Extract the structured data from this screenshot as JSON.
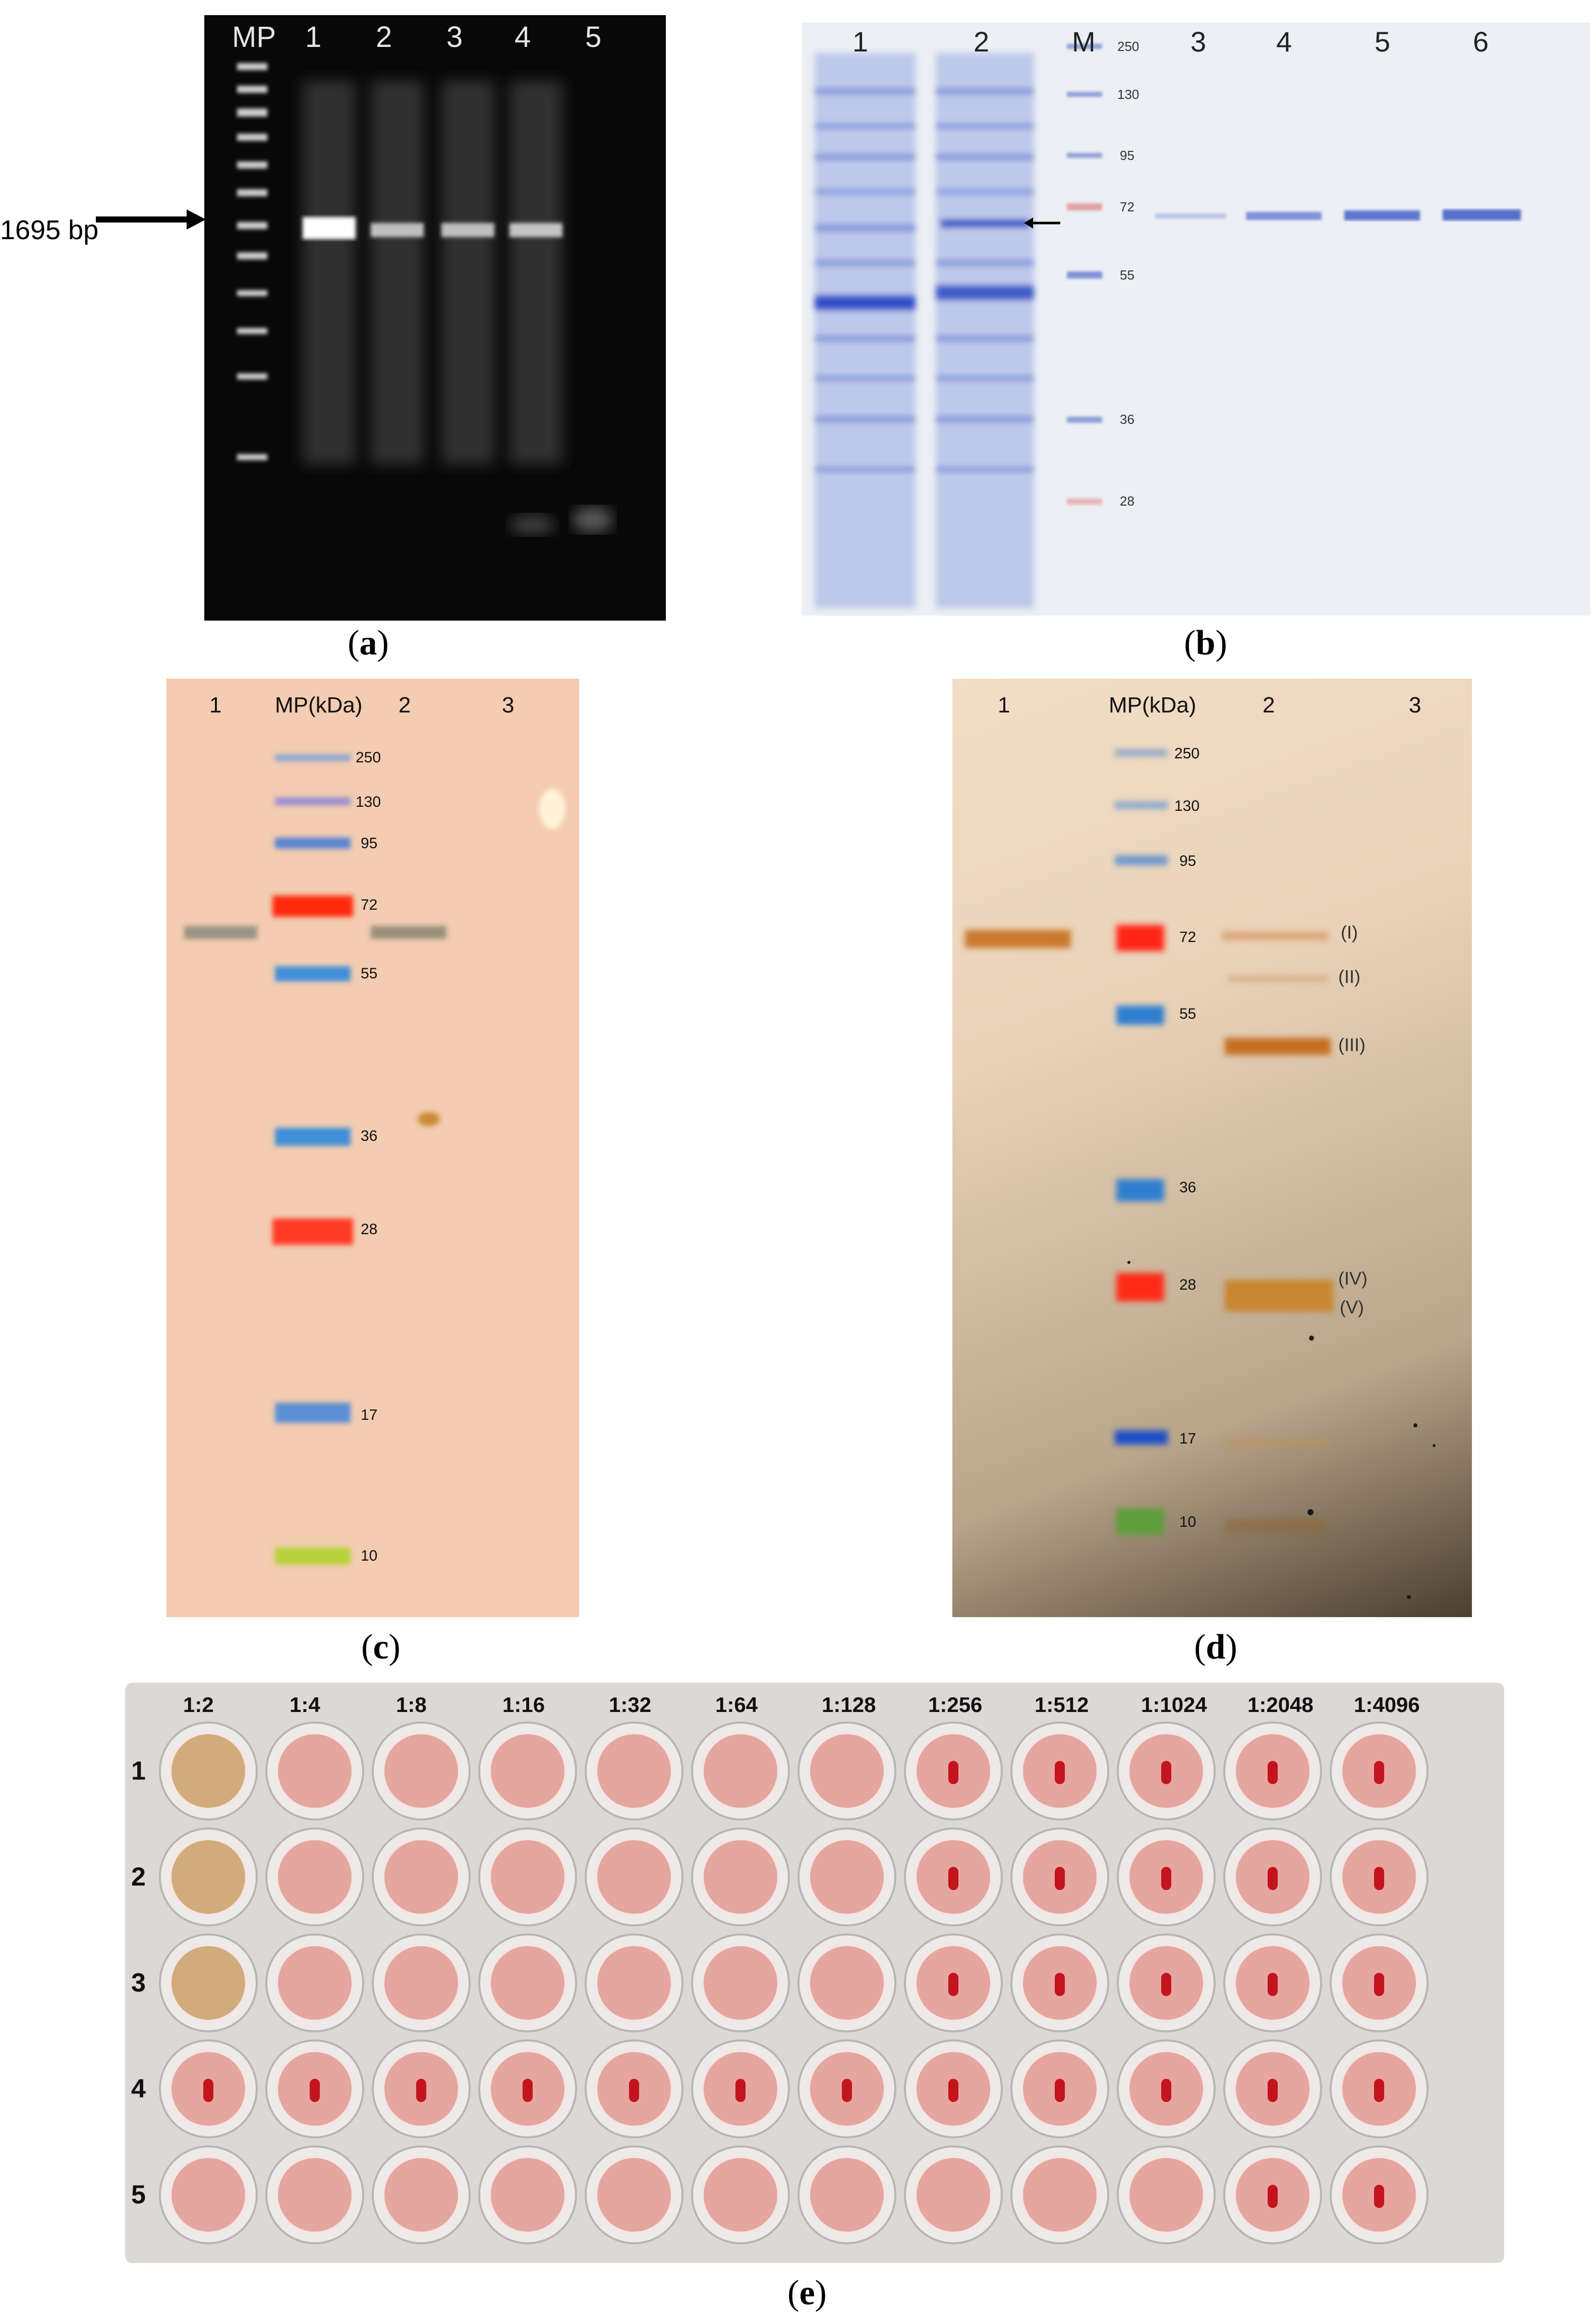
{
  "panel_a": {
    "caption": "a",
    "marker_label": "MP",
    "lanes": [
      "1",
      "2",
      "3",
      "4",
      "5"
    ],
    "band_size": "1695 bp"
  },
  "panel_b": {
    "caption": "b",
    "lanes_left": [
      "1",
      "2"
    ],
    "marker_label": "M",
    "lanes_right": [
      "3",
      "4",
      "5",
      "6"
    ],
    "mw_marks": [
      "250",
      "130",
      "95",
      "72",
      "55",
      "36",
      "28"
    ]
  },
  "panel_c": {
    "caption": "c",
    "lane_1": "1",
    "marker_label": "MP(kDa)",
    "lane_2": "2",
    "lane_3": "3",
    "mw_marks": [
      "250",
      "130",
      "95",
      "72",
      "55",
      "36",
      "28",
      "17",
      "10"
    ]
  },
  "panel_d": {
    "caption": "d",
    "lane_1": "1",
    "marker_label": "MP(kDa)",
    "lane_2": "2",
    "lane_3": "3",
    "mw_marks": [
      "250",
      "130",
      "95",
      "72",
      "55",
      "36",
      "28",
      "17",
      "10"
    ],
    "band_ids": [
      "(I)",
      "(II)",
      "(III)",
      "(IV)",
      "(V)"
    ]
  },
  "panel_e": {
    "caption": "e",
    "dilutions": [
      "1:2",
      "1:4",
      "1:8",
      "1:16",
      "1:32",
      "1:64",
      "1:128",
      "1:256",
      "1:512",
      "1:1024",
      "1:2048",
      "1:4096"
    ],
    "rows": [
      "1",
      "2",
      "3",
      "4",
      "5"
    ]
  }
}
